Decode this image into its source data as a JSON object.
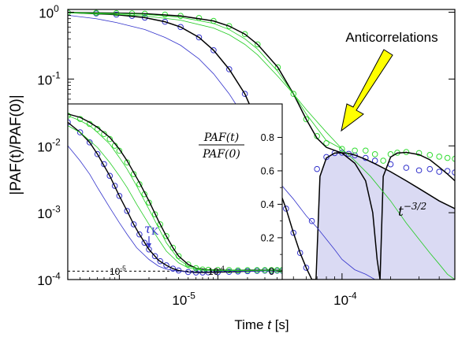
{
  "colors": {
    "green": "#22cc22",
    "green_circle": "#33dd33",
    "blue": "#3333cc",
    "black": "#000000",
    "shade": "#dadaf3",
    "arrow": "#ffff00"
  },
  "chart_data": [
    {
      "type": "line",
      "panel": "main",
      "xscale": "log",
      "yscale": "log",
      "xlim": [
        2e-06,
        0.0005
      ],
      "ylim": [
        0.0001,
        1.1
      ],
      "xlabel_pre": "Time",
      "xlabel_var": "t",
      "xlabel_unit": "[s]",
      "ylabel": "|PAF(t)/PAF(0)|",
      "yticks": [
        {
          "value": 0.0001,
          "base": "10",
          "exp": "-4"
        },
        {
          "value": 0.001,
          "base": "10",
          "exp": "-3"
        },
        {
          "value": 0.01,
          "base": "10",
          "exp": "-2"
        },
        {
          "value": 0.1,
          "base": "10",
          "exp": "-1"
        },
        {
          "value": 1,
          "base": "10",
          "exp": "0"
        }
      ],
      "xticks": [
        {
          "value": 1e-05,
          "base": "10",
          "exp": "-5"
        },
        {
          "value": 0.0001,
          "base": "10",
          "exp": "-4"
        }
      ],
      "annotations": {
        "anticorrelations": "Anticorrelations",
        "power_law": "t",
        "power_law_exp": "−3/2"
      },
      "series": [
        {
          "color": "blue",
          "style": "circles",
          "x": [
            2e-06,
            3e-06,
            4e-06,
            5e-06,
            6e-06,
            8e-06,
            1e-05,
            1.3e-05,
            1.6e-05,
            2e-05,
            2.5e-05,
            3e-05,
            3.5e-05,
            4e-05,
            4.5e-05,
            5e-05,
            5.5e-05,
            6e-05,
            6.5e-05,
            7e-05,
            8e-05,
            9e-05,
            0.0001,
            0.00011,
            0.00012,
            0.00014,
            0.00016,
            0.0002,
            0.00025,
            0.0003,
            0.00035,
            0.0004,
            0.00045,
            0.0005
          ],
          "y": [
            0.99,
            0.96,
            0.92,
            0.88,
            0.83,
            0.72,
            0.6,
            0.42,
            0.27,
            0.14,
            0.06,
            0.022,
            0.0075,
            0.0025,
            0.00115,
            0.0005,
            0.00025,
            0.00015,
            0.00075,
            0.0045,
            0.0068,
            0.0078,
            0.0079,
            0.0076,
            0.0072,
            0.0066,
            0.006,
            0.0053,
            0.0047,
            0.0043,
            0.0045,
            0.0041,
            0.0042,
            0.004
          ]
        },
        {
          "color": "green",
          "style": "circles",
          "x": [
            2e-06,
            3e-06,
            4e-06,
            5e-06,
            6e-06,
            8e-06,
            1e-05,
            1.3e-05,
            1.6e-05,
            2e-05,
            2.5e-05,
            3e-05,
            4e-05,
            5e-05,
            6e-05,
            7e-05,
            8e-05,
            0.0001,
            0.00012,
            0.00014,
            0.00016,
            0.00018,
            0.0002,
            0.00022,
            0.00025,
            0.0003,
            0.00035,
            0.0004,
            0.00045,
            0.0005
          ],
          "y": [
            0.99,
            0.98,
            0.97,
            0.96,
            0.95,
            0.92,
            0.88,
            0.82,
            0.74,
            0.62,
            0.47,
            0.33,
            0.15,
            0.06,
            0.025,
            0.014,
            0.011,
            0.009,
            0.0085,
            0.0085,
            0.0075,
            0.006,
            0.0075,
            0.0079,
            0.0081,
            0.0078,
            0.0073,
            0.0069,
            0.0066,
            0.0064
          ]
        },
        {
          "color": "black",
          "style": "line",
          "x": [
            2e-06,
            4e-06,
            6e-06,
            8e-06,
            1e-05,
            1.3e-05,
            1.6e-05,
            2e-05,
            2.5e-05,
            3e-05,
            3.5e-05,
            4e-05,
            4.5e-05,
            5e-05,
            5.5e-05,
            6e-05,
            6.5e-05,
            6.9e-05,
            7.3e-05,
            8e-05,
            9e-05,
            0.0001,
            0.00011,
            0.00012,
            0.00014,
            0.00016,
            0.0002,
            0.00025,
            0.0003,
            0.0004,
            0.0005
          ],
          "y": [
            0.99,
            0.92,
            0.83,
            0.72,
            0.6,
            0.42,
            0.27,
            0.14,
            0.06,
            0.022,
            0.0075,
            0.0025,
            0.00115,
            0.0005,
            0.00025,
            0.00015,
            0.0001,
            0.0001,
            0.0035,
            0.0066,
            0.0078,
            0.0079,
            0.0077,
            0.0073,
            0.0063,
            0.0054,
            0.0041,
            0.003,
            0.0023,
            0.0015,
            0.00115
          ]
        },
        {
          "color": "black",
          "style": "line",
          "x": [
            2e-06,
            4e-06,
            6e-06,
            1e-05,
            1.6e-05,
            2e-05,
            2.5e-05,
            3e-05,
            4e-05,
            5e-05,
            6e-05,
            7e-05,
            8e-05,
            0.0001,
            0.00012,
            0.00014,
            0.000155,
            0.000165,
            0.000172,
            0.00018,
            0.0002,
            0.00022,
            0.00025,
            0.0003,
            0.00035,
            0.0004,
            0.00045,
            0.0005
          ],
          "y": [
            0.99,
            0.97,
            0.95,
            0.88,
            0.74,
            0.62,
            0.47,
            0.33,
            0.15,
            0.06,
            0.025,
            0.013,
            0.0095,
            0.0078,
            0.0055,
            0.003,
            0.001,
            0.0002,
            0.0001,
            0.0035,
            0.0068,
            0.0078,
            0.008,
            0.0074,
            0.0062,
            0.0048,
            0.0038,
            0.003
          ]
        },
        {
          "color": "blue",
          "style": "thin",
          "x": [
            2e-06,
            3e-06,
            4e-06,
            6e-06,
            8e-06,
            1e-05,
            1.3e-05,
            1.6e-05,
            2e-05,
            2.5e-05,
            3e-05,
            4e-05,
            5e-05,
            6e-05,
            7e-05,
            8e-05,
            9e-05,
            0.0001,
            0.00012,
            0.00014,
            0.00016,
            0.00017
          ],
          "y": [
            0.9,
            0.8,
            0.7,
            0.55,
            0.42,
            0.32,
            0.2,
            0.12,
            0.06,
            0.026,
            0.011,
            0.003,
            0.0016,
            0.0009,
            0.0006,
            0.0004,
            0.00028,
            0.0002,
            0.00014,
            0.00012,
            0.0001,
            0.0001
          ]
        },
        {
          "color": "green",
          "style": "thin",
          "x": [
            2e-06,
            4e-06,
            6e-06,
            1e-05,
            1.6e-05,
            2e-05,
            2.5e-05,
            3e-05,
            4e-05,
            5e-05,
            6e-05,
            8e-05,
            0.0001,
            0.00012,
            0.00015,
            0.0002,
            0.00025,
            0.0003,
            0.00035,
            0.0004,
            0.00045,
            0.0005
          ],
          "y": [
            0.98,
            0.93,
            0.88,
            0.76,
            0.58,
            0.46,
            0.33,
            0.23,
            0.11,
            0.06,
            0.035,
            0.016,
            0.009,
            0.006,
            0.0035,
            0.0015,
            0.0007,
            0.0004,
            0.00025,
            0.00017,
            0.00012,
            0.0001
          ]
        },
        {
          "color": "green",
          "style": "thin",
          "x": [
            2e-06,
            4e-06,
            6e-06,
            1e-05,
            1.6e-05,
            2e-05,
            2.5e-05,
            3e-05,
            4e-05,
            5e-05,
            6e-05,
            8e-05,
            0.0001
          ],
          "y": [
            0.99,
            0.96,
            0.93,
            0.84,
            0.68,
            0.55,
            0.4,
            0.28,
            0.13,
            0.06,
            0.03,
            0.012,
            0.009
          ]
        }
      ],
      "shaded_region": {
        "x": [
          7e-05,
          7.3e-05,
          8e-05,
          9e-05,
          0.0001,
          0.00011,
          0.00012,
          0.00014,
          0.00016,
          0.0002,
          0.00025,
          0.0003,
          0.0004,
          0.0005
        ],
        "y": [
          0.0001,
          0.0035,
          0.0066,
          0.0078,
          0.0079,
          0.0077,
          0.0073,
          0.0063,
          0.0054,
          0.0041,
          0.003,
          0.0023,
          0.0015,
          0.00115
        ]
      }
    },
    {
      "type": "line",
      "panel": "inset",
      "xscale": "log",
      "yscale": "linear",
      "xlim": [
        3e-06,
        0.00045
      ],
      "ylim": [
        -0.05,
        1.0
      ],
      "ylabel_num": "PAF(t)",
      "ylabel_den": "PAF(0)",
      "tau_label": "τ",
      "tau_sub": "K",
      "tau_x": 2e-05,
      "yticks": [
        "0",
        "0.2",
        "0.4",
        "0.6",
        "0.8"
      ],
      "xticks": [
        {
          "value": 1e-05,
          "base": "10",
          "exp": "-5"
        },
        {
          "value": 0.0001,
          "base": "10",
          "exp": "-4"
        }
      ],
      "series": [
        {
          "color": "blue",
          "style": "circles",
          "x": [
            3e-06,
            4e-06,
            5e-06,
            6e-06,
            7e-06,
            8e-06,
            9e-06,
            1e-05,
            1.2e-05,
            1.4e-05,
            1.6e-05,
            1.8e-05,
            2e-05,
            2.3e-05,
            2.6e-05,
            3e-05,
            3.5e-05,
            4e-05,
            5e-05,
            6e-05,
            7e-05,
            8e-05,
            0.0001,
            0.00013,
            0.00016,
            0.0002,
            0.00025,
            0.0003,
            0.00035,
            0.0004,
            0.00045
          ],
          "y": [
            0.89,
            0.83,
            0.77,
            0.7,
            0.64,
            0.57,
            0.51,
            0.45,
            0.36,
            0.28,
            0.22,
            0.17,
            0.13,
            0.09,
            0.06,
            0.035,
            0.015,
            0.004,
            -0.005,
            -0.008,
            -0.008,
            -0.007,
            -0.006,
            -0.004,
            -0.002,
            0.0,
            0.002,
            0.003,
            0.002,
            0.003,
            0.003
          ]
        },
        {
          "color": "green",
          "style": "circles",
          "x": [
            3e-06,
            4e-06,
            5e-06,
            6e-06,
            7e-06,
            8e-06,
            9e-06,
            1e-05,
            1.2e-05,
            1.4e-05,
            1.6e-05,
            1.8e-05,
            2e-05,
            2.3e-05,
            2.6e-05,
            3e-05,
            3.5e-05,
            4e-05,
            5e-05,
            6e-05,
            7e-05,
            8e-05,
            0.0001,
            0.00013,
            0.00016,
            0.0002,
            0.00025,
            0.0003,
            0.00035,
            0.0004,
            0.00045
          ],
          "y": [
            0.93,
            0.91,
            0.88,
            0.85,
            0.82,
            0.79,
            0.75,
            0.72,
            0.65,
            0.58,
            0.52,
            0.46,
            0.41,
            0.34,
            0.28,
            0.21,
            0.14,
            0.09,
            0.04,
            0.018,
            0.01,
            0.008,
            0.007,
            0.006,
            0.005,
            0.006,
            0.006,
            0.006,
            0.006,
            0.006,
            0.006
          ]
        },
        {
          "color": "black",
          "style": "line",
          "x": [
            3e-06,
            4e-06,
            5e-06,
            6e-06,
            8e-06,
            1e-05,
            1.2e-05,
            1.4e-05,
            1.6e-05,
            2e-05,
            2.5e-05,
            3e-05,
            3.5e-05,
            4e-05,
            5e-05,
            6e-05,
            8e-05,
            0.0001,
            0.00015,
            0.0002,
            0.0003,
            0.00045
          ],
          "y": [
            0.89,
            0.83,
            0.77,
            0.7,
            0.57,
            0.45,
            0.36,
            0.28,
            0.22,
            0.13,
            0.065,
            0.035,
            0.015,
            0.004,
            -0.005,
            -0.008,
            -0.007,
            -0.006,
            -0.003,
            0.0,
            0.003,
            0.003
          ]
        },
        {
          "color": "black",
          "style": "line",
          "x": [
            3e-06,
            4e-06,
            5e-06,
            6e-06,
            8e-06,
            1e-05,
            1.2e-05,
            1.4e-05,
            1.6e-05,
            2e-05,
            2.5e-05,
            3e-05,
            3.5e-05,
            4e-05,
            5e-05,
            6e-05,
            8e-05,
            0.0001,
            0.00015,
            0.0002,
            0.0003,
            0.00045
          ],
          "y": [
            0.94,
            0.92,
            0.89,
            0.86,
            0.8,
            0.73,
            0.66,
            0.59,
            0.53,
            0.42,
            0.3,
            0.21,
            0.14,
            0.09,
            0.04,
            0.018,
            0.008,
            0.007,
            0.005,
            0.006,
            0.006,
            0.006
          ]
        },
        {
          "color": "blue",
          "style": "thin",
          "x": [
            3e-06,
            4e-06,
            5e-06,
            6e-06,
            8e-06,
            1e-05,
            1.2e-05,
            1.5e-05,
            2e-05,
            2.5e-05,
            3e-05,
            4e-05,
            5e-05,
            7e-05,
            0.0001,
            0.0002,
            0.00045
          ],
          "y": [
            0.75,
            0.66,
            0.58,
            0.5,
            0.38,
            0.29,
            0.22,
            0.14,
            0.07,
            0.03,
            0.012,
            0.0,
            -0.004,
            -0.004,
            -0.002,
            0.0,
            0.002
          ]
        },
        {
          "color": "green",
          "style": "thin",
          "x": [
            3e-06,
            4e-06,
            5e-06,
            6e-06,
            8e-06,
            1e-05,
            1.2e-05,
            1.5e-05,
            2e-05,
            2.5e-05,
            3e-05,
            4e-05,
            5e-05,
            7e-05,
            0.0001,
            0.0002,
            0.00045
          ],
          "y": [
            0.87,
            0.83,
            0.78,
            0.74,
            0.65,
            0.57,
            0.5,
            0.4,
            0.28,
            0.19,
            0.12,
            0.05,
            0.02,
            0.006,
            0.003,
            0.004,
            0.005
          ]
        },
        {
          "color": "green",
          "style": "thin",
          "x": [
            3e-06,
            4e-06,
            5e-06,
            6e-06,
            8e-06,
            1e-05,
            1.2e-05,
            1.5e-05,
            2e-05,
            2.5e-05,
            3e-05,
            4e-05,
            5e-05,
            7e-05,
            0.0001,
            0.0002,
            0.00045
          ],
          "y": [
            0.93,
            0.9,
            0.87,
            0.83,
            0.76,
            0.68,
            0.61,
            0.51,
            0.37,
            0.26,
            0.17,
            0.07,
            0.03,
            0.01,
            0.007,
            0.006,
            0.006
          ]
        }
      ]
    }
  ]
}
